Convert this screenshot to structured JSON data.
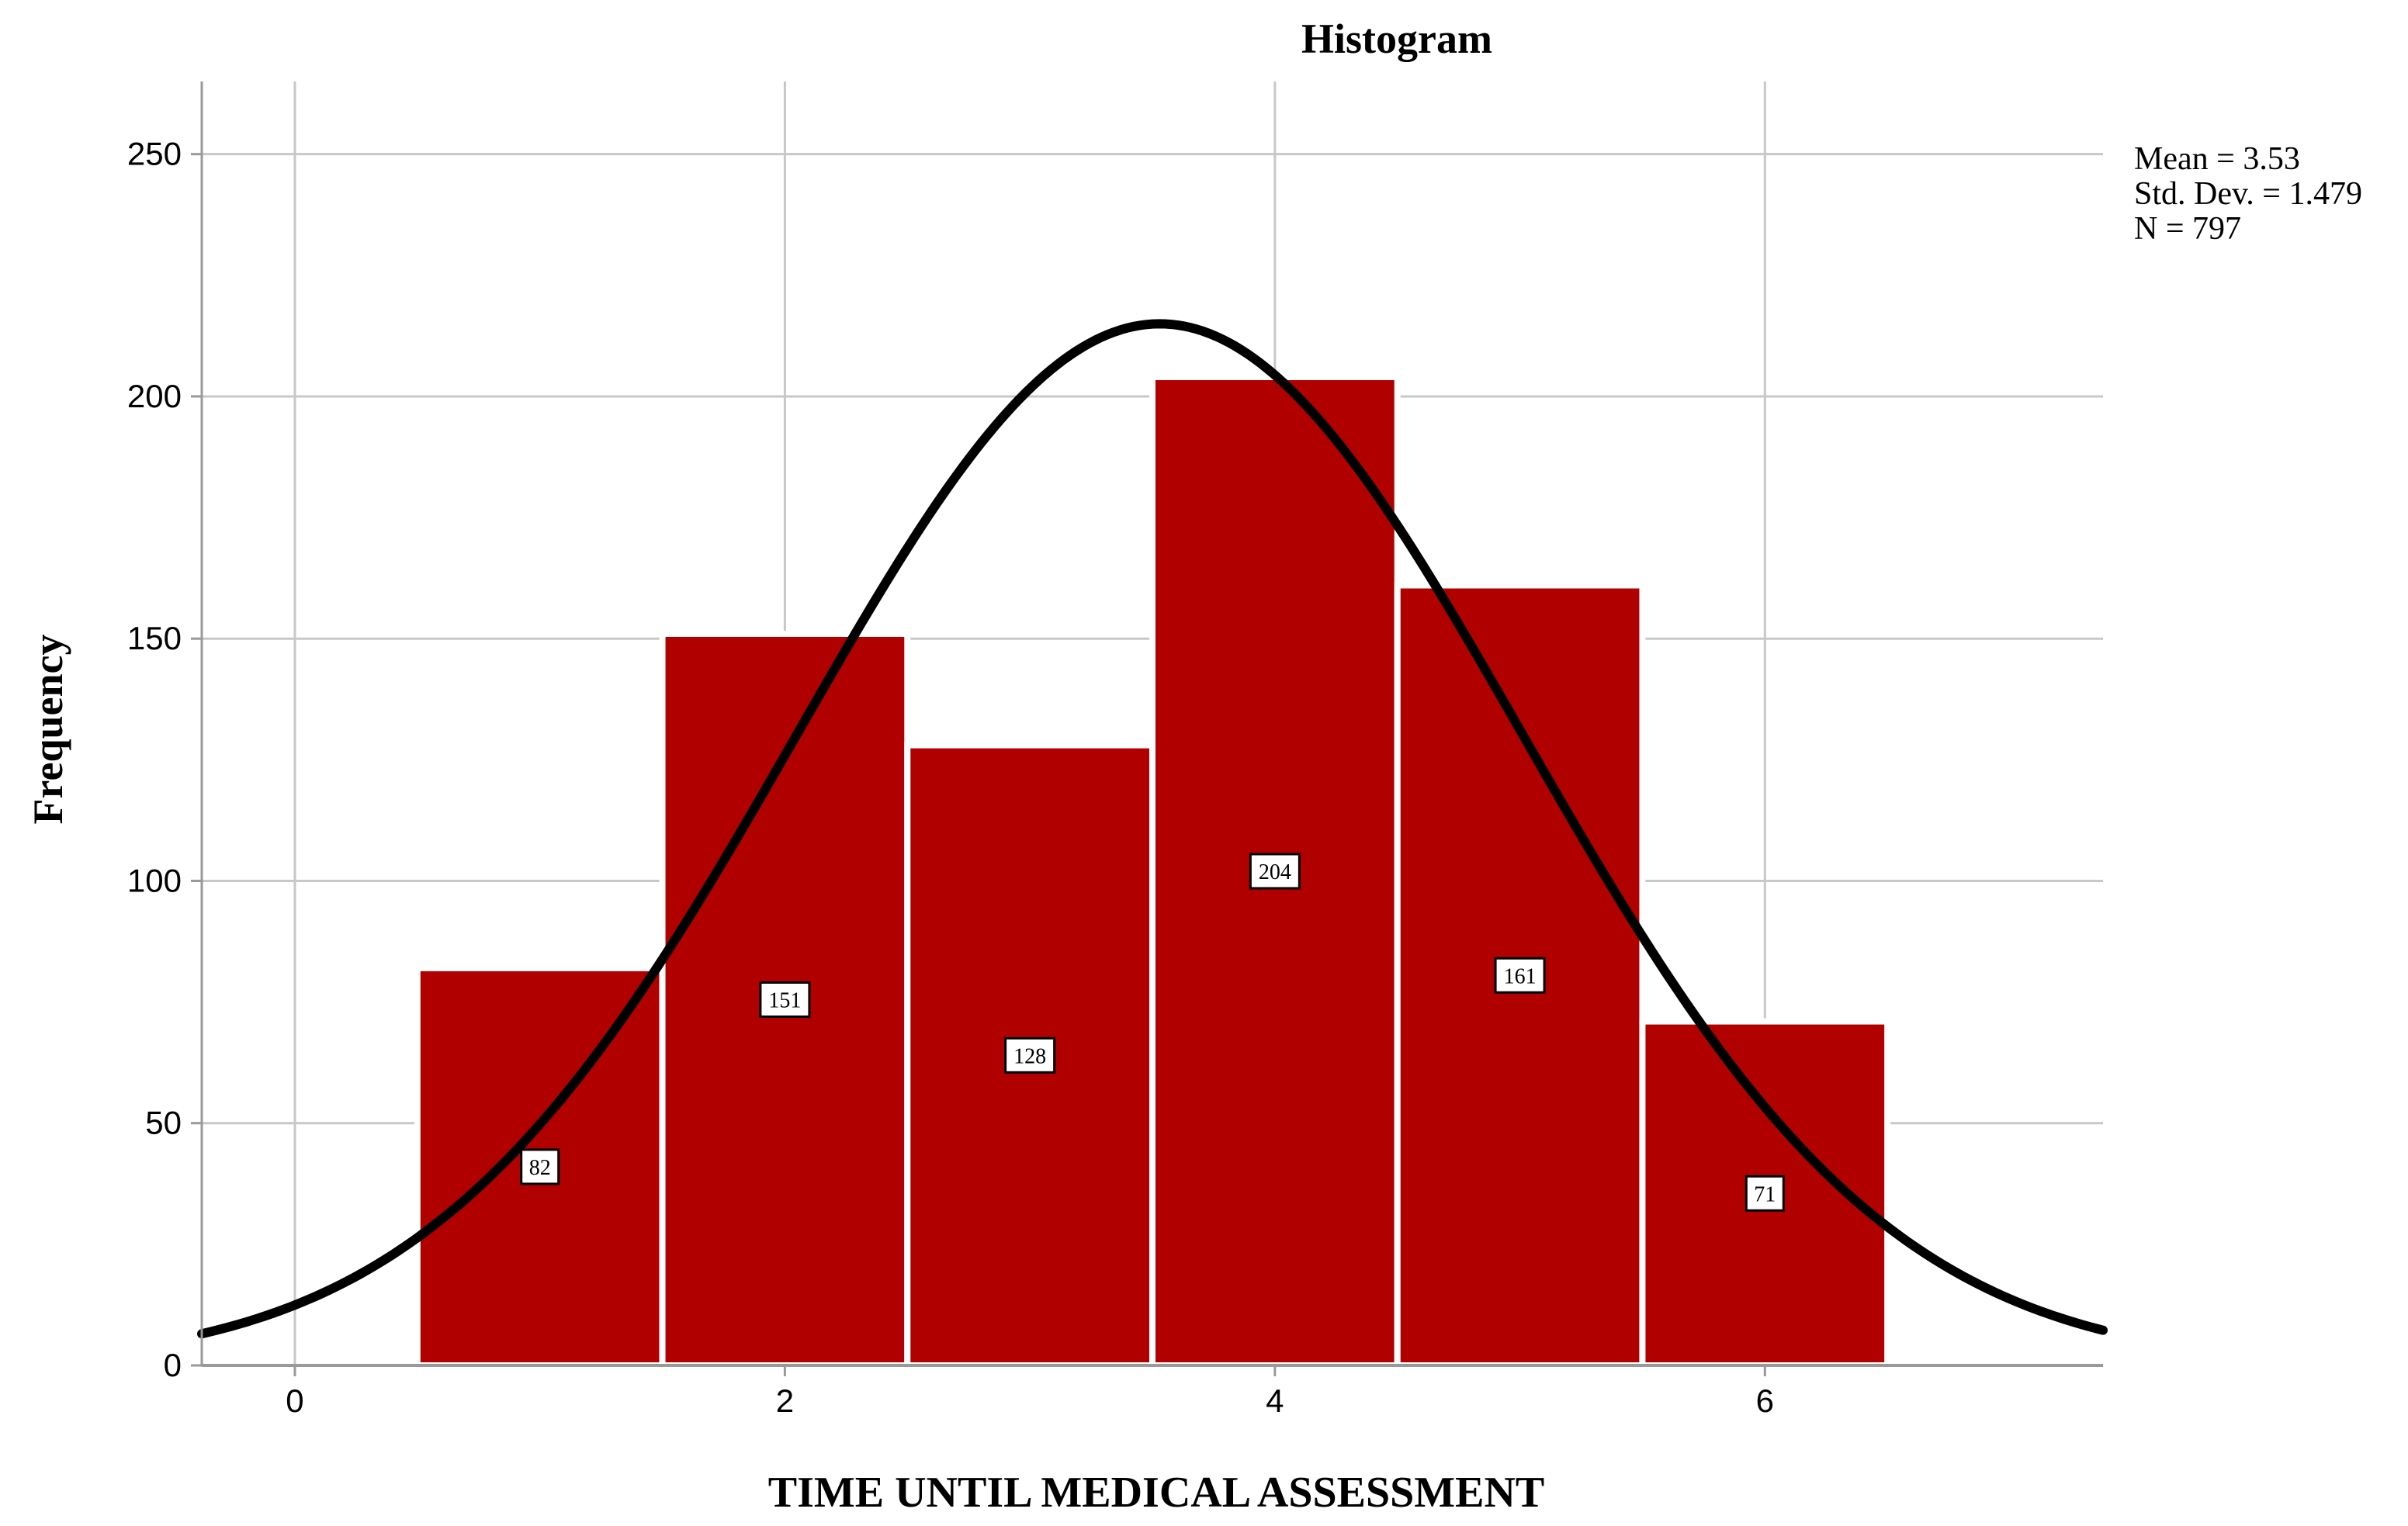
{
  "chart_data": {
    "type": "bar",
    "title": "Histogram",
    "xlabel": "TIME UNTIL MEDICAL ASSESSMENT",
    "ylabel": "Frequency",
    "categories": [
      "1",
      "2",
      "3",
      "4",
      "5",
      "6"
    ],
    "bin_centers": [
      1,
      2,
      3,
      4,
      5,
      6
    ],
    "bin_width": 1,
    "values": [
      82,
      151,
      128,
      204,
      161,
      71
    ],
    "data_labels": [
      "82",
      "151",
      "128",
      "204",
      "161",
      "71"
    ],
    "xlim": [
      -0.38,
      7.38
    ],
    "ylim": [
      0,
      265
    ],
    "x_ticks": [
      0,
      2,
      4,
      6
    ],
    "x_tick_labels": [
      "0",
      "2",
      "4",
      "6"
    ],
    "y_ticks": [
      0,
      50,
      100,
      150,
      200,
      250
    ],
    "y_tick_labels": [
      "0",
      "50",
      "100",
      "150",
      "200",
      "250"
    ],
    "grid": true,
    "normal_curve": {
      "mean": 3.53,
      "std_dev": 1.479,
      "n": 797
    },
    "stats_text": [
      "Mean = 3.53",
      "Std. Dev. = 1.479",
      "N = 797"
    ],
    "legend_position": "top-right",
    "colors": {
      "bar_fill": "#b00000",
      "bar_edge": "#ffffff",
      "curve": "#000000",
      "grid": "#c8c8c8",
      "axis": "#999999"
    }
  }
}
